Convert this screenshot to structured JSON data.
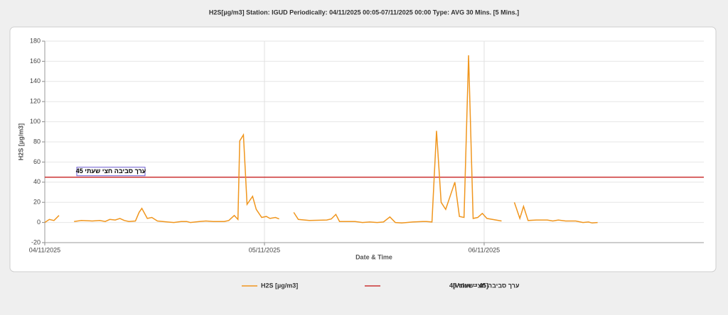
{
  "chart_data": {
    "type": "line",
    "title": "H2S[µg/m3] Station: IGUD  Periodically: 04/11/2025 00:05-07/11/2025 00:00  Type: AVG 30 Mins. [5 Mins.]",
    "y_label": "H2S [µg/m3]",
    "x_label": "Date & Time",
    "xlim": [
      0,
      72
    ],
    "xticks": [
      {
        "value": 0,
        "label": "04/11/2025"
      },
      {
        "value": 24,
        "label": "05/11/2025"
      },
      {
        "value": 48,
        "label": "06/11/2025"
      }
    ],
    "ylim": [
      -20,
      180
    ],
    "yticks": [
      -20,
      0,
      20,
      40,
      60,
      80,
      100,
      120,
      140,
      160,
      180
    ],
    "grid": true,
    "series": [
      {
        "name": "H2S [µg/m3]",
        "color": "#f0961e",
        "x": [
          0,
          0.5,
          1,
          1.55,
          null,
          3.2,
          4,
          5.2,
          6,
          6.6,
          7.1,
          7.7,
          8.2,
          8.7,
          9.2,
          9.9,
          10.3,
          10.6,
          11.2,
          11.7,
          12.3,
          13.4,
          14.1,
          14.9,
          15.5,
          15.9,
          16.9,
          17.6,
          18.4,
          19.6,
          20.1,
          20.7,
          21.1,
          21.3,
          21.7,
          22.1,
          22.7,
          23.1,
          23.7,
          24.2,
          24.6,
          25.2,
          25.6,
          null,
          27.2,
          27.7,
          28.9,
          30.8,
          31.3,
          31.8,
          32.2,
          33.9,
          34.7,
          35.5,
          36.3,
          37,
          37.7,
          38.3,
          39,
          40.2,
          41.3,
          41.7,
          42.3,
          42.8,
          43.3,
          43.8,
          44.8,
          45.3,
          45.8,
          46.3,
          46.8,
          47.3,
          47.8,
          48.3,
          49.9,
          null,
          51.3,
          51.9,
          52.3,
          52.8,
          53.7,
          54.9,
          55.5,
          56.1,
          56.9,
          58,
          58.8,
          59.4,
          59.8,
          60.4
        ],
        "values": [
          0,
          3,
          2,
          7,
          null,
          1,
          2,
          1.5,
          2,
          1,
          3,
          2.5,
          4,
          2,
          1,
          1.5,
          10,
          14,
          4,
          5,
          1.5,
          0.5,
          0,
          1,
          1,
          0,
          1,
          1.5,
          1,
          1,
          2,
          7,
          3,
          81,
          87,
          18,
          26,
          13,
          5,
          6,
          4,
          5,
          3.5,
          null,
          10,
          3,
          2,
          2.5,
          3.5,
          8,
          1,
          1,
          0,
          0.5,
          0,
          0.5,
          5.5,
          0,
          -0.5,
          0.5,
          1,
          1,
          0.5,
          91,
          20,
          13,
          40,
          6,
          5,
          166,
          4,
          5,
          9,
          4,
          1.5,
          null,
          20,
          4,
          16,
          2,
          2.5,
          2.5,
          1.5,
          2.5,
          1.5,
          1.5,
          0,
          0.5,
          -0.5,
          0
        ]
      }
    ],
    "reference_line": {
      "name": "ערך סביבה חצי שעתי 45",
      "value": 45,
      "value_label": "[Value = 45]",
      "color": "#cc3333"
    }
  }
}
